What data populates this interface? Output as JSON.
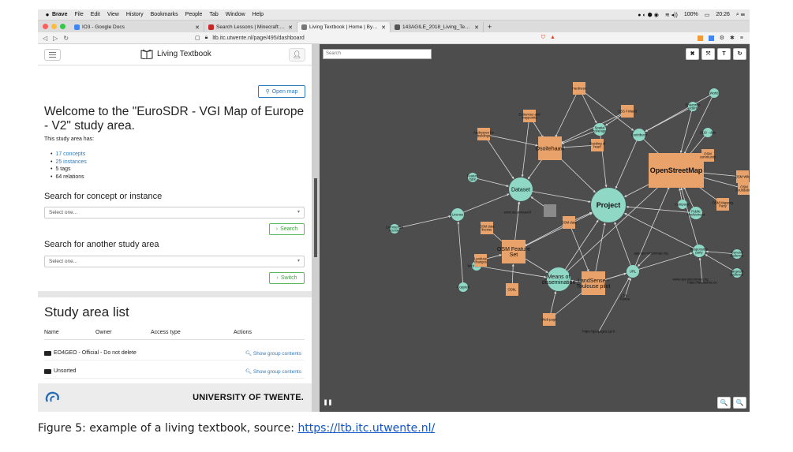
{
  "menubar": {
    "items": [
      "Brave",
      "File",
      "Edit",
      "View",
      "History",
      "Bookmarks",
      "People",
      "Tab",
      "Window",
      "Help"
    ],
    "battery": "100%",
    "clock": "20:26"
  },
  "tabs": [
    {
      "label": "IO3 - Google Docs",
      "color": "#4285f4"
    },
    {
      "label": "Search Lessons | Minecraft: Edu",
      "color": "#c62828"
    },
    {
      "label": "Living Textbook | Home | By ITC",
      "color": "#777777"
    },
    {
      "label": "143AGILE_2018_Living_Textbook",
      "color": "#555555"
    }
  ],
  "browser": {
    "url": "ltb.itc.utwente.nl/page/495/dashboard"
  },
  "app": {
    "brand": "Living Textbook",
    "open_map_label": "Open map",
    "welcome_title": "Welcome to the \"EuroSDR - VGI Map of Europe - V2\" study area.",
    "has_text": "This study area has:",
    "stats": {
      "concepts": "17 concepts",
      "instances": "25 instances",
      "tags": "5 tags",
      "relations": "64 relations"
    },
    "search_concept": {
      "title": "Search for concept or instance",
      "placeholder": "Select one...",
      "button": "Search"
    },
    "search_area": {
      "title": "Search for another study area",
      "placeholder": "Select one...",
      "button": "Switch"
    },
    "study_list": {
      "title": "Study area list",
      "headers": {
        "name": "Name",
        "owner": "Owner",
        "access": "Access type",
        "actions": "Actions"
      },
      "rows": [
        {
          "name": "EO4GEO - Official - Do not delete",
          "action": "Show group contents"
        },
        {
          "name": "Unsorted",
          "action": "Show group contents"
        }
      ]
    },
    "footer_text": "UNIVERSITY OF TWENTE."
  },
  "map": {
    "search_placeholder": "Search",
    "tools": [
      "✖",
      "⤧",
      "T",
      "↻"
    ],
    "zoom": [
      "🔍",
      "🔍"
    ],
    "colors": {
      "concept": "#8fd8c6",
      "instance": "#e8a26a",
      "background": "#4d4d4d",
      "edge": "#d8d8d8"
    },
    "nodes": [
      {
        "id": "project",
        "label": "Project",
        "type": "concept",
        "size": "large",
        "tx": 0.42,
        "ty": 0.4
      },
      {
        "id": "dataset",
        "label": "Dataset",
        "type": "concept",
        "size": "medium"
      },
      {
        "id": "osm",
        "label": "OpenStreetMap",
        "type": "instance",
        "size": "large"
      },
      {
        "id": "osoite",
        "label": "Osoitehaavi",
        "type": "instance",
        "size": "medium"
      },
      {
        "id": "landsense",
        "label": "LandSense - Toulouse pilot",
        "type": "instance",
        "size": "medium"
      },
      {
        "id": "osmfeature",
        "label": "OSM Feature Set",
        "type": "instance",
        "size": "medium"
      },
      {
        "id": "means",
        "label": "Means of dissemination",
        "type": "concept",
        "size": "medium"
      },
      {
        "id": "url",
        "label": "URL",
        "type": "concept",
        "size": "small"
      },
      {
        "id": "responsible",
        "label": "Responsible party",
        "type": "concept",
        "size": "small"
      },
      {
        "id": "contributor",
        "label": "Contributor",
        "type": "concept",
        "size": "small"
      },
      {
        "id": "spatial",
        "label": "Spatial coverage",
        "type": "concept",
        "size": "small"
      },
      {
        "id": "public",
        "label": "Public involvement",
        "type": "concept",
        "size": "small"
      },
      {
        "id": "license",
        "label": "License",
        "type": "concept",
        "size": "small"
      },
      {
        "id": "copyleft",
        "label": "Copyleft",
        "type": "concept",
        "size": "tiny"
      },
      {
        "id": "campaign",
        "label": "Campaign",
        "type": "concept",
        "size": "tiny"
      },
      {
        "id": "featuretype",
        "label": "Feature type",
        "type": "concept",
        "size": "tiny"
      },
      {
        "id": "webservice",
        "label": "Web service",
        "type": "concept",
        "size": "tiny"
      },
      {
        "id": "enterprise",
        "label": "Enterprise extent",
        "type": "concept",
        "size": "tiny"
      },
      {
        "id": "world",
        "label": "World",
        "type": "concept",
        "size": "tiny"
      },
      {
        "id": "general",
        "label": "General audience",
        "type": "concept",
        "size": "tiny"
      },
      {
        "id": "targeted",
        "label": "Targeted audience",
        "type": "concept",
        "size": "tiny"
      },
      {
        "id": "commercial",
        "label": "Commercial license",
        "type": "concept",
        "size": "tiny"
      },
      {
        "id": "hk2018",
        "label": "2018 - date",
        "type": "concept",
        "size": "tiny"
      },
      {
        "id": "weburl",
        "label": "Web page",
        "type": "instance",
        "size": "small"
      },
      {
        "id": "ossfinland",
        "label": "OSS Finland",
        "type": "instance",
        "size": "small"
      },
      {
        "id": "osmcommunity",
        "label": "OSM community",
        "type": "instance",
        "size": "small"
      },
      {
        "id": "osmwiki",
        "label": "OSM Wiki",
        "type": "instance",
        "size": "small"
      },
      {
        "id": "osmfoundation",
        "label": "OSM Foundation",
        "type": "instance",
        "size": "small"
      },
      {
        "id": "osmmap",
        "label": "OSM Mapping Party",
        "type": "instance",
        "size": "small"
      },
      {
        "id": "addresses",
        "label": "Addresses for buildings",
        "type": "instance",
        "size": "small"
      },
      {
        "id": "entrances",
        "label": "Entrances and waypoints",
        "type": "instance",
        "size": "small"
      },
      {
        "id": "hardness",
        "label": "Hardness",
        "type": "instance",
        "size": "small"
      },
      {
        "id": "tracking",
        "label": "Tracking of heart",
        "type": "instance",
        "size": "small"
      },
      {
        "id": "landuse",
        "label": "Landuse changes",
        "type": "instance",
        "size": "small"
      },
      {
        "id": "osmdata",
        "label": "OSM data",
        "type": "instance",
        "size": "small"
      },
      {
        "id": "osmlicense",
        "label": "OSM data license",
        "type": "instance",
        "size": "small"
      },
      {
        "id": "odbl",
        "label": "ODbL",
        "type": "instance",
        "size": "small"
      },
      {
        "id": "gray",
        "label": "",
        "type": "gray",
        "size": "small"
      },
      {
        "id": "landsenseurl",
        "label": "https://landsense.eu",
        "type": "label",
        "size": "tiny"
      },
      {
        "id": "osmurl",
        "label": "www.openstreetmap.org",
        "type": "label",
        "size": "tiny"
      },
      {
        "id": "appurl",
        "label": "app.openstreetmap.org",
        "type": "label",
        "size": "tiny"
      },
      {
        "id": "ossurl",
        "label": "www.osoitehaavi.fi",
        "type": "label",
        "size": "tiny"
      },
      {
        "id": "ossurl2",
        "label": "https://geopages.ign.fr",
        "type": "label",
        "size": "tiny"
      },
      {
        "id": "ltrance",
        "label": "LTR - France",
        "type": "label",
        "size": "tiny"
      }
    ]
  },
  "caption": {
    "text": "Figure 5: example of a living textbook, source: ",
    "link": "https://ltb.itc.utwente.nl/"
  }
}
